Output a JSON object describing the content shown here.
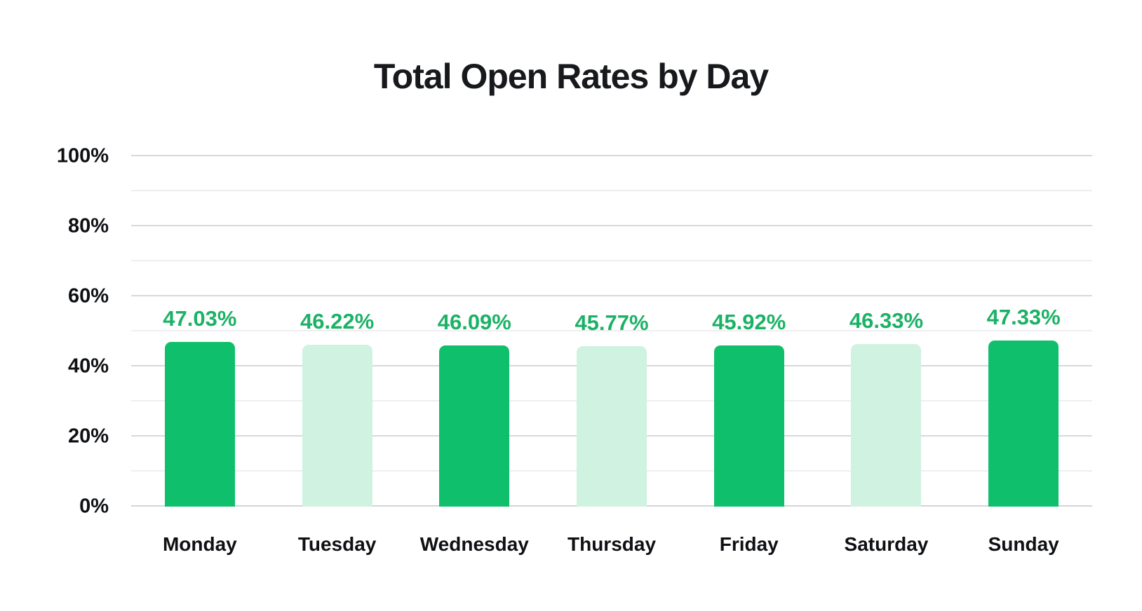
{
  "page": {
    "background": "#ffffff"
  },
  "chart_data": {
    "type": "bar",
    "title": "Total Open Rates by Day",
    "categories": [
      "Monday",
      "Tuesday",
      "Wednesday",
      "Thursday",
      "Friday",
      "Saturday",
      "Sunday"
    ],
    "values": [
      47.03,
      46.22,
      46.09,
      45.77,
      45.92,
      46.33,
      47.33
    ],
    "value_labels": [
      "47.03%",
      "46.22%",
      "46.09%",
      "45.77%",
      "45.92%",
      "46.33%",
      "47.33%"
    ],
    "bar_colors": [
      "#0fbf6b",
      "#cff2e1",
      "#0fbf6b",
      "#cff2e1",
      "#0fbf6b",
      "#cff2e1",
      "#0fbf6b"
    ],
    "xlabel": "",
    "ylabel": "",
    "ylim": [
      0,
      100
    ],
    "y_major_ticks": [
      0,
      20,
      40,
      60,
      80,
      100
    ],
    "y_major_tick_labels": [
      "0%",
      "20%",
      "40%",
      "60%",
      "80%",
      "100%"
    ],
    "y_minor_ticks": [
      10,
      30,
      50,
      70,
      90
    ],
    "grid": "horizontal",
    "legend": "none",
    "colors": {
      "bar_dark": "#0fbf6b",
      "bar_light": "#cff2e1",
      "value_label": "#1bb266",
      "title_text": "#17191c",
      "axis_text": "#0e1013",
      "major_gridline": "#d8d8dc",
      "minor_gridline": "#eeeef1",
      "baseline": "#d5d5da"
    }
  }
}
